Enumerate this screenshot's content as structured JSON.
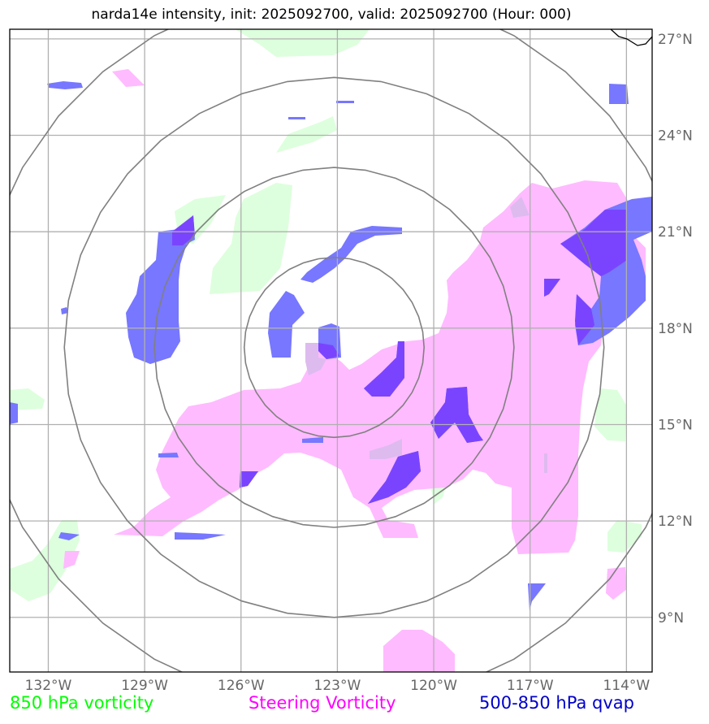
{
  "title": "narda14e intensity, init: 2025092700, valid: 2025092700 (Hour: 000)",
  "map": {
    "lon_ticks": [
      "132°W",
      "129°W",
      "126°W",
      "123°W",
      "120°W",
      "117°W",
      "114°W"
    ],
    "lon_values": [
      -132,
      -129,
      -126,
      -123,
      -120,
      -117,
      -114
    ],
    "lat_ticks": [
      "27°N",
      "24°N",
      "21°N",
      "18°N",
      "15°N",
      "12°N",
      "9°N"
    ],
    "lat_values": [
      27,
      24,
      21,
      18,
      15,
      12,
      9
    ],
    "lon_range": [
      -133.2,
      -113.2
    ],
    "lat_range": [
      7.3,
      27.3
    ],
    "center": {
      "lon": -123.1,
      "lat": 17.4
    },
    "range_rings_count": 4,
    "grid": true
  },
  "legend": {
    "green": {
      "label": "850 hPa vorticity",
      "color": "#00ff00"
    },
    "magenta": {
      "label": "Steering Vorticity",
      "color": "#ff00ff"
    },
    "blue": {
      "label": "500-850 hPa qvap",
      "color": "#0000cc"
    }
  },
  "colors": {
    "green_fill": "#ddffdd",
    "magenta_fill": "#ffbbff",
    "blue_fill": "#7777ff",
    "overlap_fill": "#7a44ff",
    "grid": "#b0b0b0",
    "rings": "#808080",
    "coast": "#000000"
  }
}
